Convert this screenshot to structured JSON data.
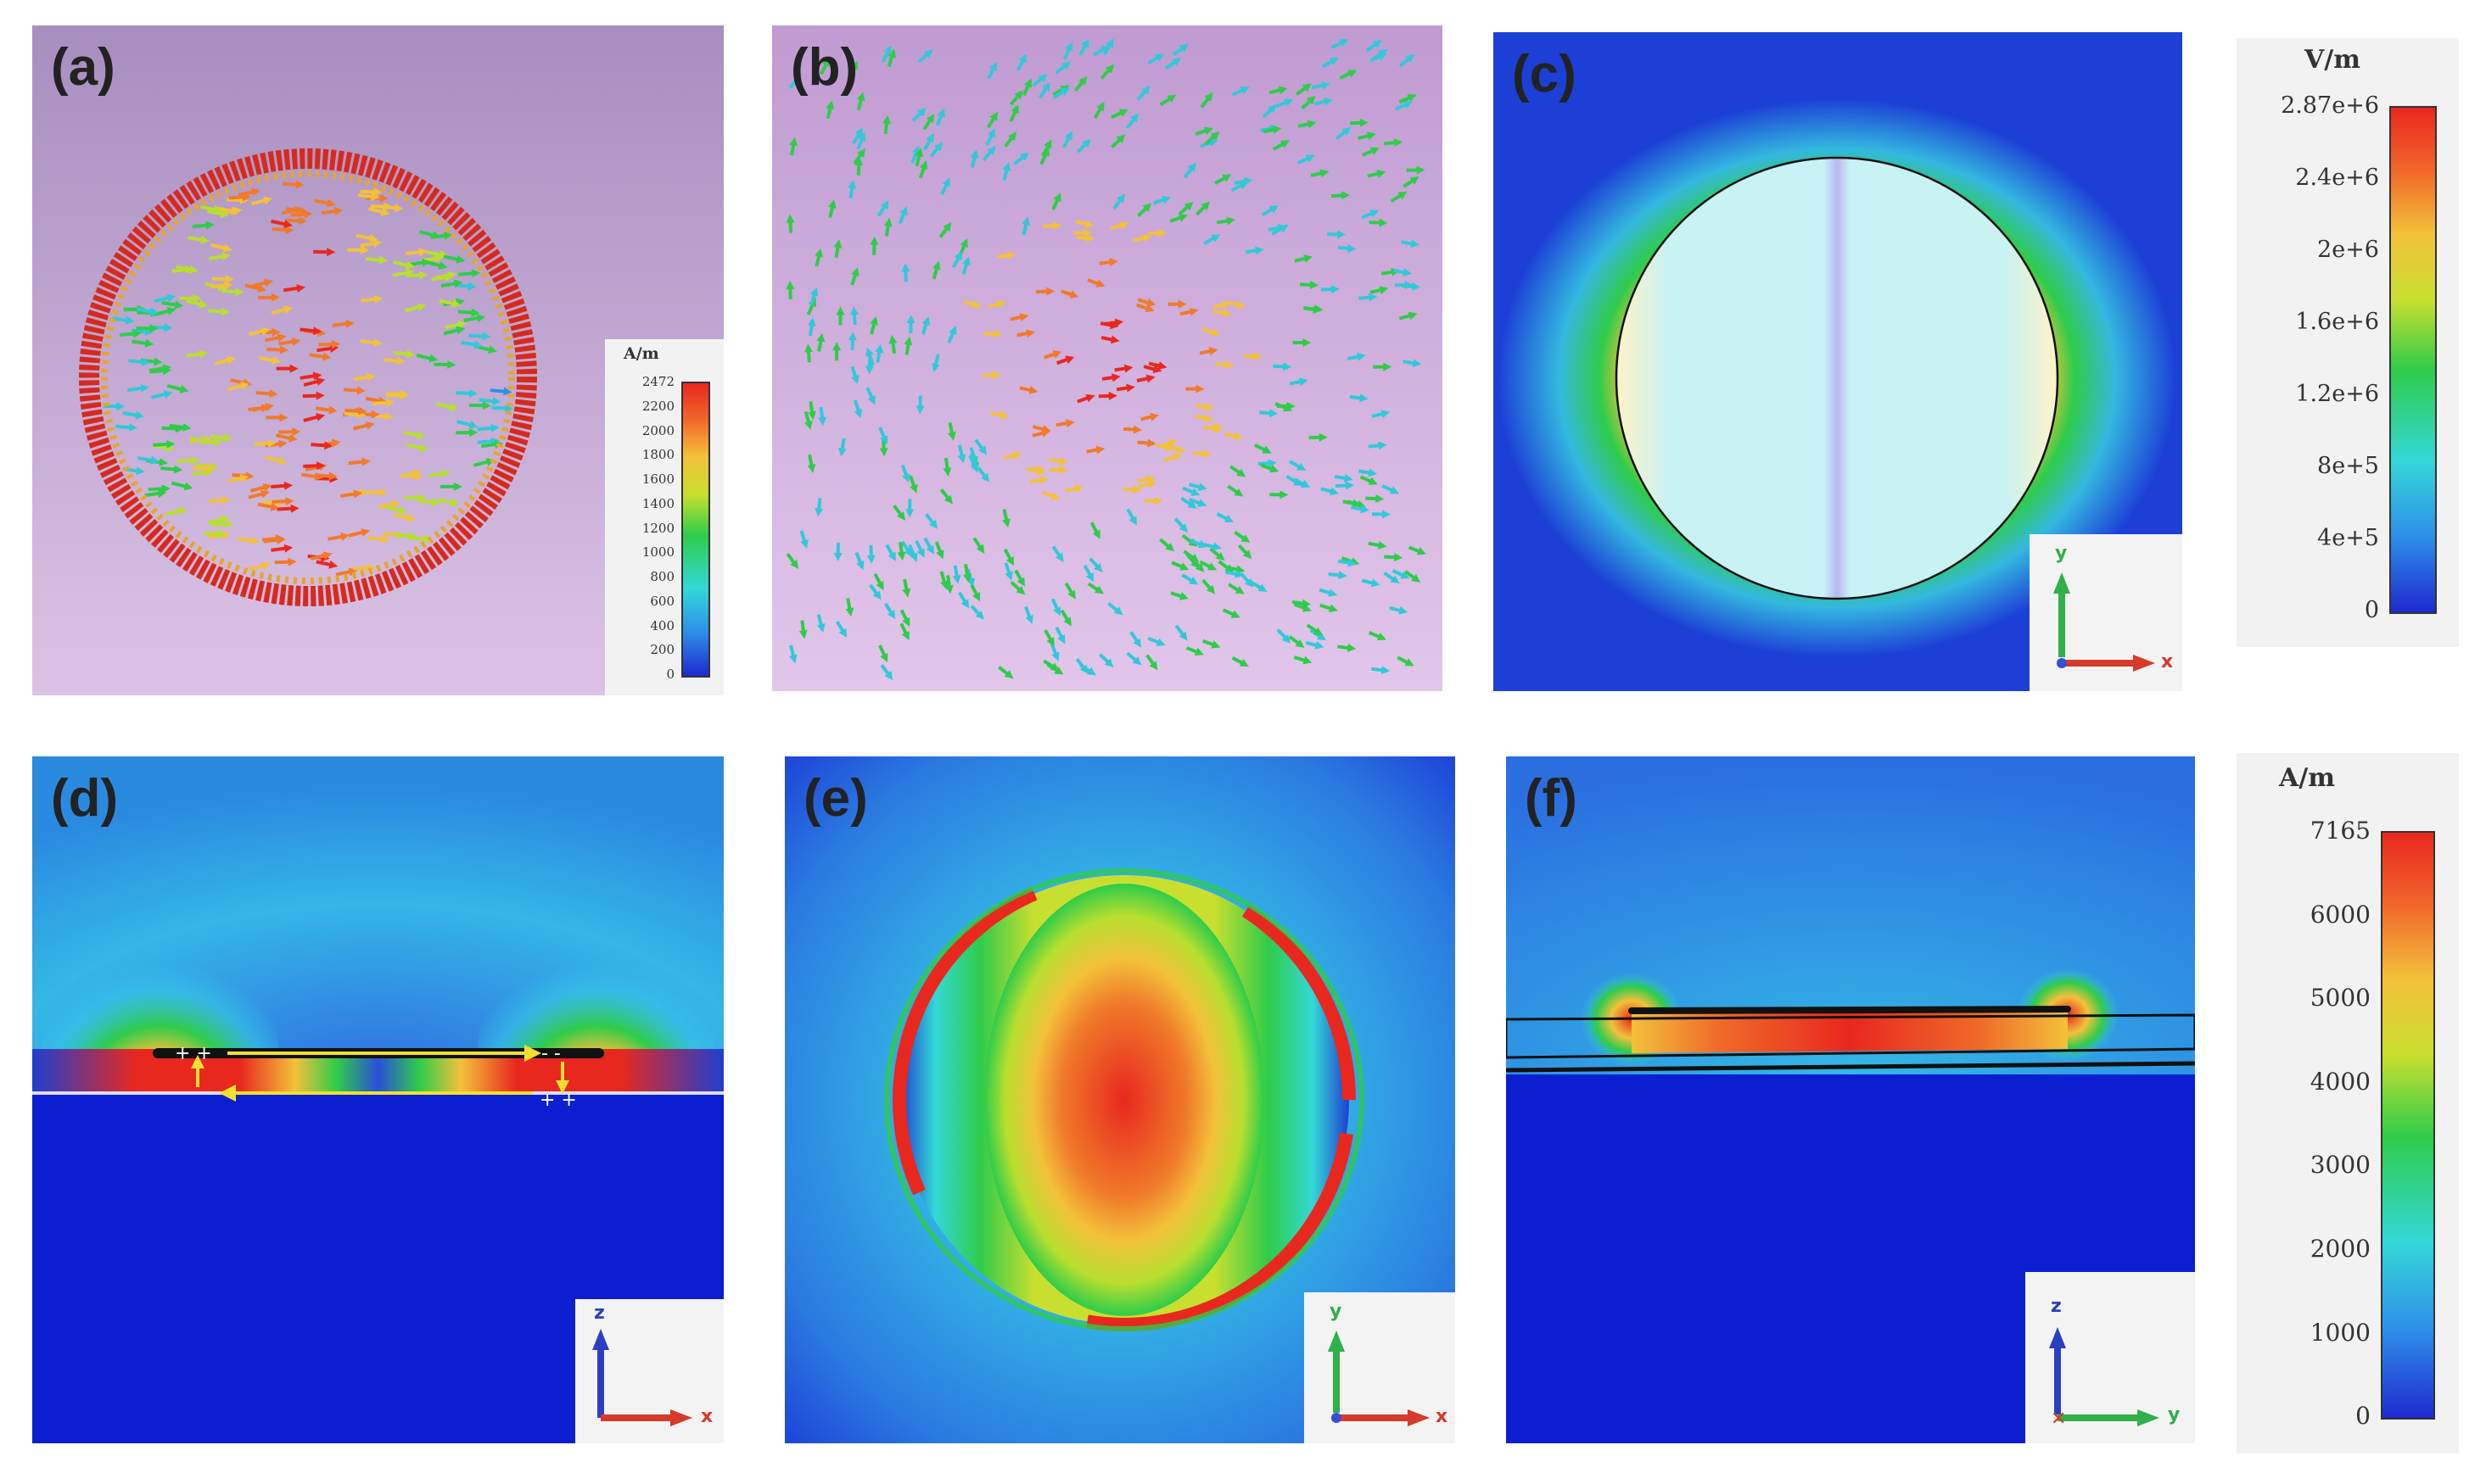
{
  "panels": {
    "a": {
      "label": "(a)"
    },
    "b": {
      "label": "(b)"
    },
    "c": {
      "label": "(c)"
    },
    "d": {
      "label": "(d)"
    },
    "e": {
      "label": "(e)"
    },
    "f": {
      "label": "(f)"
    }
  },
  "legend_a": {
    "unit": "A/m",
    "ticks": [
      "2472",
      "2200",
      "2000",
      "1800",
      "1600",
      "1400",
      "1200",
      "1000",
      "800",
      "600",
      "400",
      "200",
      "0"
    ]
  },
  "legend_c": {
    "unit": "V/m",
    "ticks": [
      "2.87e+6",
      "2.4e+6",
      "2e+6",
      "1.6e+6",
      "1.2e+6",
      "8e+5",
      "4e+5",
      "0"
    ]
  },
  "legend_f": {
    "unit": "A/m",
    "ticks": [
      "7165",
      "6000",
      "5000",
      "4000",
      "3000",
      "2000",
      "1000",
      "0"
    ]
  },
  "axes": {
    "c": {
      "v": "y",
      "h": "x"
    },
    "d": {
      "v": "z",
      "h": "x"
    },
    "e": {
      "v": "y",
      "h": "x"
    },
    "f": {
      "v": "z",
      "h": "y"
    }
  },
  "colors": {
    "low": "#1e2ad0",
    "mid": "#2fcc4a",
    "high": "#e8281e",
    "background_a": "#b49ac8",
    "background_b": "#c9a8d8"
  }
}
